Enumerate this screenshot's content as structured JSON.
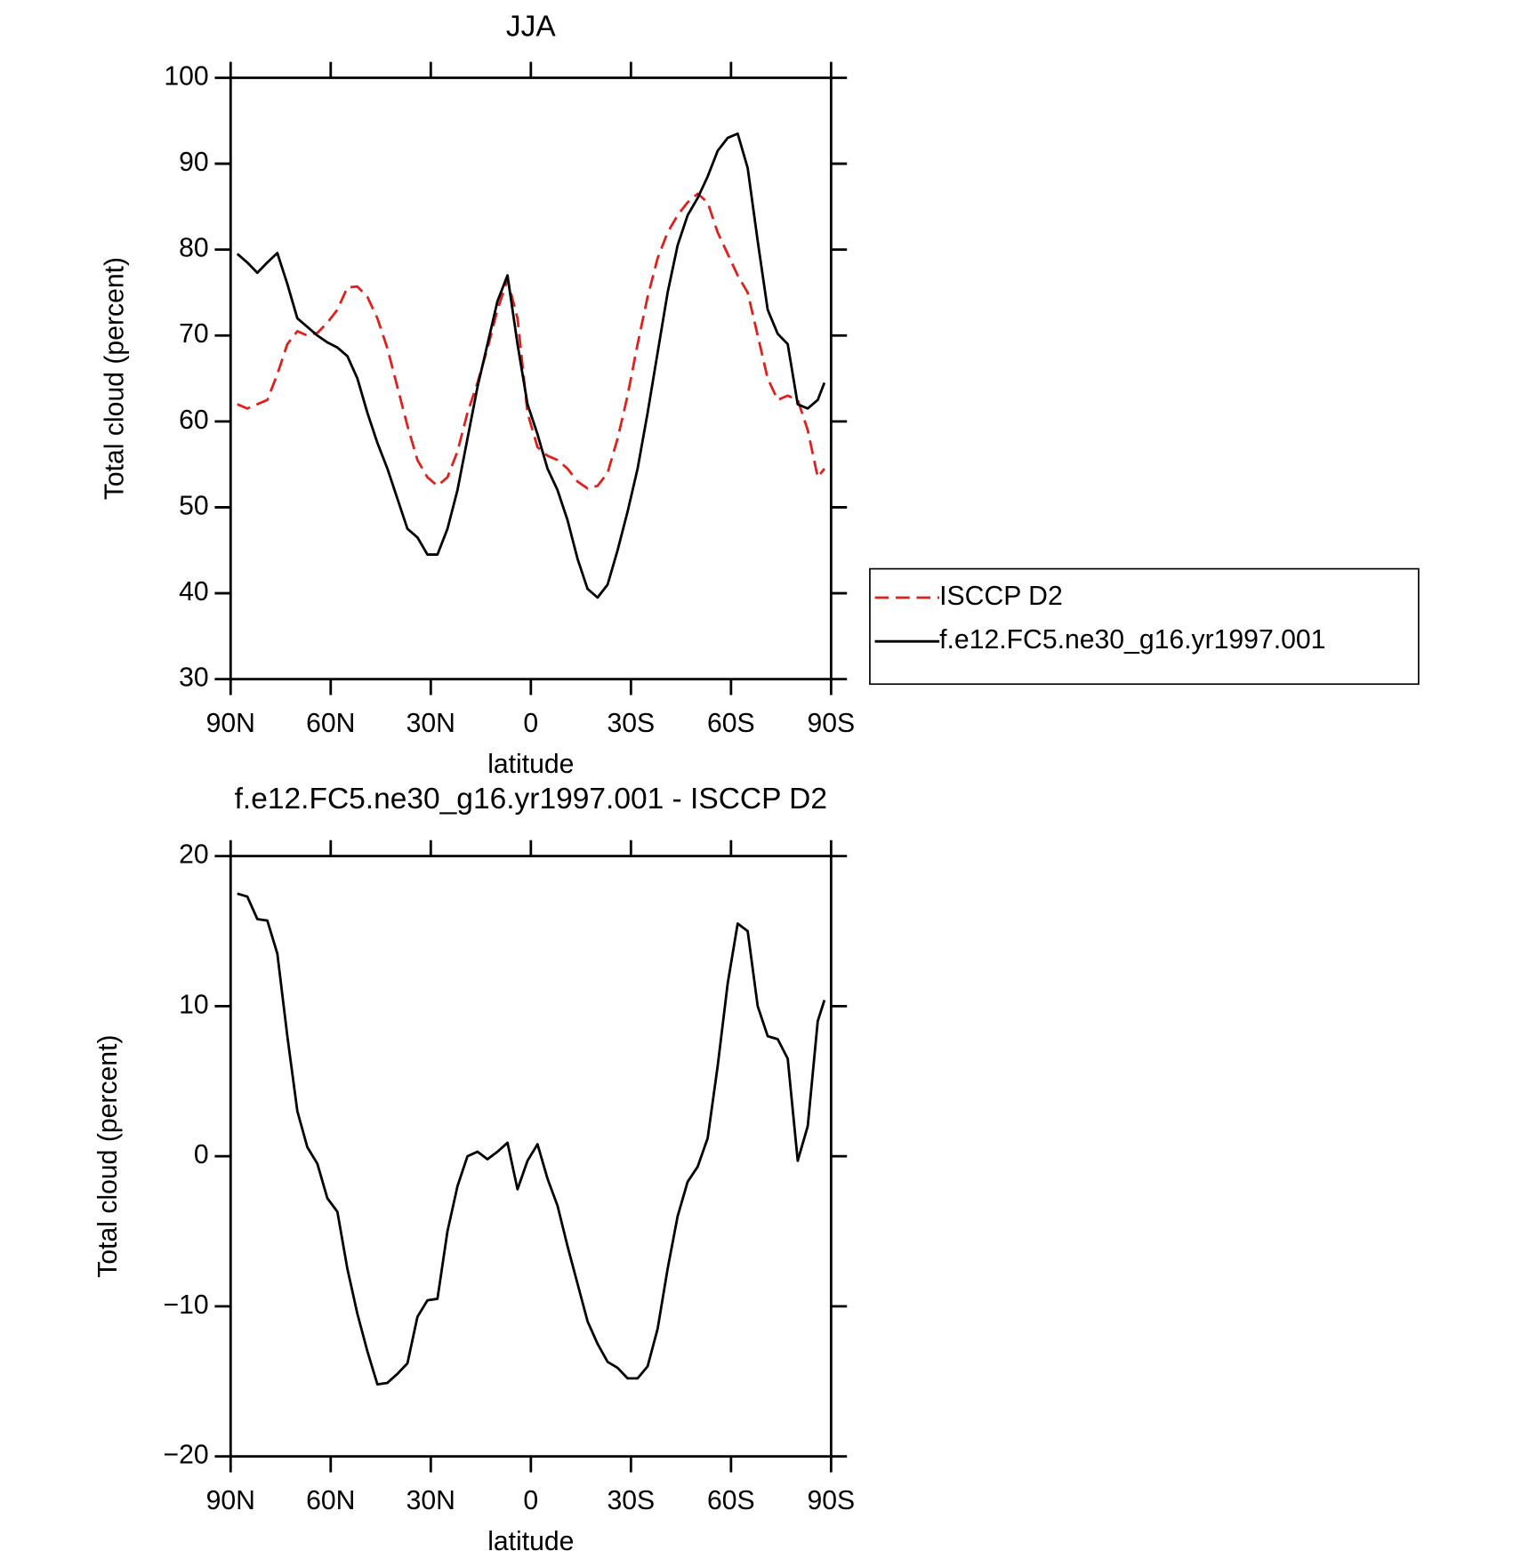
{
  "chart_data": [
    {
      "type": "line",
      "title": "JJA",
      "xlabel": "latitude",
      "ylabel": "Total cloud (percent)",
      "x": [
        88,
        85,
        82,
        79,
        76,
        73,
        70,
        67,
        64,
        61,
        58,
        55,
        52,
        49,
        46,
        43,
        40,
        37,
        34,
        31,
        28,
        25,
        22,
        19,
        16,
        13,
        10,
        7,
        4,
        1,
        -2,
        -5,
        -8,
        -11,
        -14,
        -17,
        -20,
        -23,
        -26,
        -29,
        -32,
        -35,
        -38,
        -41,
        -44,
        -47,
        -50,
        -53,
        -56,
        -59,
        -62,
        -65,
        -68,
        -71,
        -74,
        -77,
        -80,
        -83,
        -86,
        -88
      ],
      "series": [
        {
          "name": "ISCCP D2",
          "color": "#e0201b",
          "dash": "dashed",
          "values": [
            62,
            61.5,
            62,
            62.5,
            65.5,
            69,
            70.5,
            70,
            70.3,
            71.5,
            73,
            75.6,
            75.7,
            74.5,
            72,
            68.5,
            64,
            59.5,
            55.5,
            53.5,
            52.5,
            53.5,
            56.5,
            61,
            64.5,
            68.5,
            73,
            76.5,
            72,
            61,
            57,
            56,
            55.5,
            54.5,
            53,
            52.2,
            52.5,
            54,
            58,
            63,
            69,
            74.5,
            79,
            82,
            84,
            85.5,
            86.5,
            85.5,
            82,
            79.5,
            77,
            75,
            70,
            65,
            62.5,
            63,
            62.5,
            59,
            53.5,
            54.5
          ]
        },
        {
          "name": "f.e12.FC5.ne30_g16.yr1997.001",
          "color": "#000000",
          "dash": "solid",
          "values": [
            79.5,
            78.5,
            77.3,
            78.5,
            79.6,
            76,
            72,
            71,
            70,
            69.2,
            68.6,
            67.6,
            65,
            61,
            57.5,
            54.5,
            51,
            47.5,
            46.5,
            44.5,
            44.5,
            47.5,
            52,
            58,
            64,
            69,
            74,
            77,
            69,
            62,
            58.5,
            54.5,
            52,
            48.5,
            44,
            40.5,
            39.5,
            41,
            45,
            49.5,
            54.5,
            61,
            68,
            75,
            80.5,
            84,
            86,
            88.5,
            91.5,
            93,
            93.5,
            89.5,
            81,
            73,
            70.2,
            69,
            62,
            61.5,
            62.5,
            64.5
          ]
        }
      ],
      "xlim": [
        90,
        -90
      ],
      "xticks": [
        {
          "value": 90,
          "label": "90N"
        },
        {
          "value": 60,
          "label": "60N"
        },
        {
          "value": 30,
          "label": "30N"
        },
        0,
        {
          "value": -30,
          "label": "30S"
        },
        {
          "value": -60,
          "label": "60S"
        },
        {
          "value": -90,
          "label": "90S"
        }
      ],
      "ylim": [
        30,
        100
      ],
      "yticks": [
        30,
        40,
        50,
        60,
        70,
        80,
        90,
        100
      ],
      "legend": "outside right"
    },
    {
      "type": "line",
      "title": "f.e12.FC5.ne30_g16.yr1997.001 - ISCCP D2",
      "xlabel": "latitude",
      "ylabel": "Total cloud (percent)",
      "x": [
        88,
        85,
        82,
        79,
        76,
        73,
        70,
        67,
        64,
        61,
        58,
        55,
        52,
        49,
        46,
        43,
        40,
        37,
        34,
        31,
        28,
        25,
        22,
        19,
        16,
        13,
        10,
        7,
        4,
        1,
        -2,
        -5,
        -8,
        -11,
        -14,
        -17,
        -20,
        -23,
        -26,
        -29,
        -32,
        -35,
        -38,
        -41,
        -44,
        -47,
        -50,
        -53,
        -56,
        -59,
        -62,
        -65,
        -68,
        -71,
        -74,
        -77,
        -80,
        -83,
        -86,
        -88
      ],
      "color": "#000000",
      "values": [
        17.5,
        17.3,
        15.8,
        15.7,
        13.5,
        8,
        3,
        0.6,
        -0.5,
        -2.8,
        -3.7,
        -7.5,
        -10.5,
        -13,
        -15.2,
        -15.1,
        -14.5,
        -13.8,
        -10.7,
        -9.6,
        -9.5,
        -5,
        -2,
        0,
        0.3,
        -0.2,
        0.3,
        0.9,
        -2.2,
        -0.3,
        0.8,
        -1.5,
        -3.3,
        -6,
        -8.5,
        -11,
        -12.5,
        -13.7,
        -14.1,
        -14.8,
        -14.8,
        -14,
        -11.5,
        -7.5,
        -4,
        -1.7,
        -0.7,
        1.2,
        6,
        11.5,
        15.5,
        15,
        10,
        8,
        7.8,
        6.5,
        -0.3,
        2,
        9,
        10.4
      ],
      "xlim": [
        90,
        -90
      ],
      "xticks": [
        {
          "value": 90,
          "label": "90N"
        },
        {
          "value": 60,
          "label": "60N"
        },
        {
          "value": 30,
          "label": "30N"
        },
        0,
        {
          "value": -30,
          "label": "30S"
        },
        {
          "value": -60,
          "label": "60S"
        },
        {
          "value": -90,
          "label": "90S"
        }
      ],
      "ylim": [
        -20,
        20
      ],
      "yticks": [
        {
          "value": -20,
          "label": "−20"
        },
        {
          "value": -10,
          "label": "−10"
        },
        0,
        10,
        20
      ]
    }
  ]
}
